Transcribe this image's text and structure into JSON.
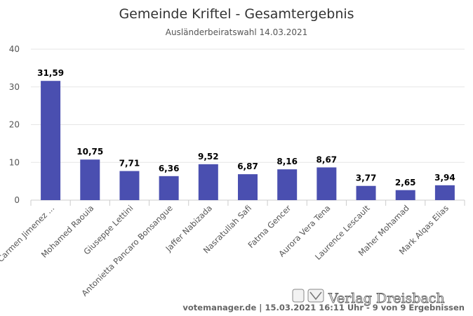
{
  "chart_data": {
    "type": "bar",
    "title": "Gemeinde Kriftel - Gesamtergebnis",
    "subtitle": "Ausländerbeiratswahl 14.03.2021",
    "categories": [
      "Carmen Jimenez ...",
      "Mohamed Raouia",
      "Giuseppe Lettini",
      "Antonietta Pancaro Bonsangue",
      "Jaffer Nabizada",
      "Nasratullah Safi",
      "Fatma Gencer",
      "Aurora Vera Tena",
      "Laurence Lescault",
      "Maher Mohamad",
      "Mark Alqas Elias"
    ],
    "values": [
      31.59,
      10.75,
      7.71,
      6.36,
      9.52,
      6.87,
      8.16,
      8.67,
      3.77,
      2.65,
      3.94
    ],
    "data_labels": [
      "31,59",
      "10,75",
      "7,71",
      "6,36",
      "9,52",
      "6,87",
      "8,16",
      "8,67",
      "3,77",
      "2,65",
      "3,94"
    ],
    "yticks": [
      "0",
      "10",
      "20",
      "30",
      "40"
    ],
    "ylim": [
      0,
      40
    ],
    "grid": true,
    "bar_color": "#4a4fb0",
    "xlabel": "",
    "ylabel": ""
  },
  "credits": "votemanager.de | 15.03.2021 16:11 Uhr - 9 von 9 Ergebnissen",
  "watermark": "Verlag Dreisbach"
}
